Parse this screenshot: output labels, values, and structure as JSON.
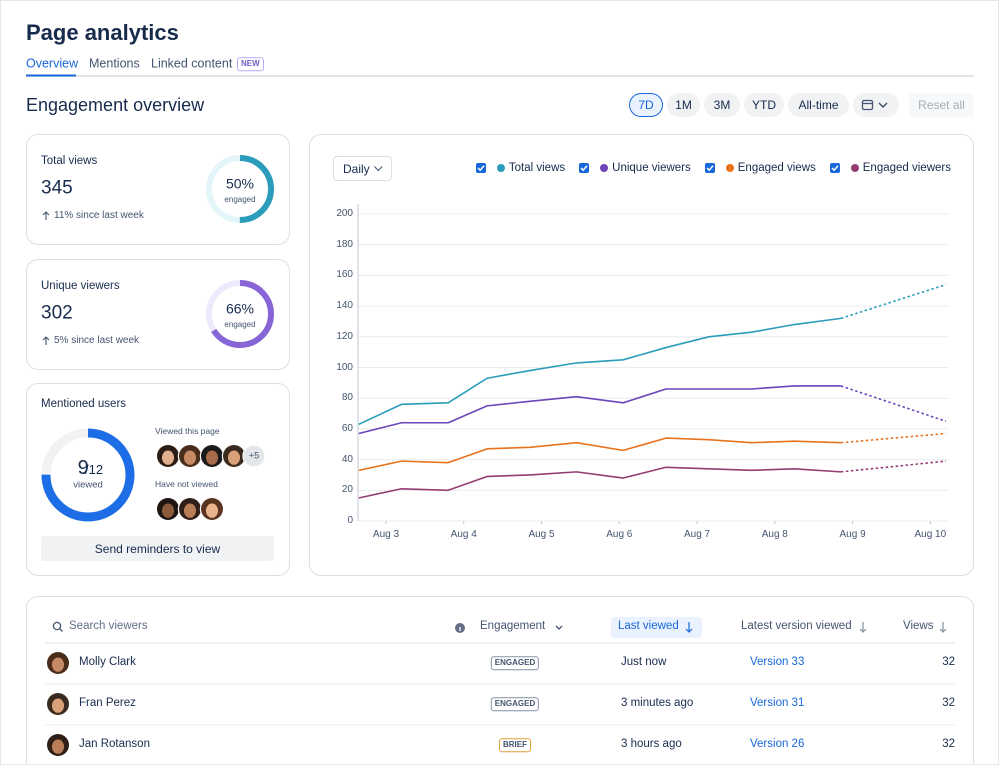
{
  "header": {
    "title": "Page analytics",
    "tabs": [
      "Overview",
      "Mentions",
      "Linked content"
    ],
    "badge": "NEW"
  },
  "section_title": "Engagement overview",
  "ranges": [
    "7D",
    "1M",
    "3M",
    "YTD",
    "All-time"
  ],
  "reset": "Reset all",
  "stats": [
    {
      "label": "Total views",
      "value": 345,
      "percent": 50,
      "percent_label": "50%",
      "caption": "engaged",
      "change": "11% since last week",
      "color": "#2b9cba",
      "track": "#e4f5fa"
    },
    {
      "label": "Unique viewers",
      "value": 302,
      "percent": 66,
      "percent_label": "66%",
      "caption": "engaged",
      "change": "5% since last week",
      "color": "#8765d6",
      "track": "#efeafb"
    }
  ],
  "mentions": {
    "title": "Mentioned users",
    "viewed": 9,
    "total": 12,
    "total_label": "/12",
    "caption": "viewed",
    "viewed_heading": "Viewed this page",
    "more": "+5",
    "not_viewed_heading": "Have not viewed",
    "button": "Send reminders to view",
    "color": "#1d6ee6",
    "track": "#f1f2f4"
  },
  "chart_data": {
    "type": "line",
    "interval": "Daily",
    "x": [
      2.65,
      3.2,
      3.8,
      4.3,
      4.85,
      5.45,
      6.05,
      6.6,
      7.15,
      7.7,
      8.25,
      8.85,
      10.2
    ],
    "xlim": [
      2.64,
      10.24
    ],
    "xticks": [
      {
        "value": 3,
        "label": "Aug 3"
      },
      {
        "value": 4,
        "label": "Aug 4"
      },
      {
        "value": 5,
        "label": "Aug 5"
      },
      {
        "value": 6,
        "label": "Aug 6"
      },
      {
        "value": 7,
        "label": "Aug 7"
      },
      {
        "value": 8,
        "label": "Aug 8"
      },
      {
        "value": 9,
        "label": "Aug 9"
      },
      {
        "value": 10,
        "label": "Aug 10"
      }
    ],
    "ylim": [
      0,
      200
    ],
    "yticks": [
      0,
      20,
      40,
      60,
      80,
      100,
      120,
      140,
      160,
      180,
      200
    ],
    "grid": true,
    "projection_start": 11,
    "series": [
      {
        "name": "Total views",
        "color": "#2b9cba",
        "values": [
          63,
          76,
          77,
          93,
          98,
          103,
          105,
          113,
          120,
          123,
          128,
          132,
          154
        ]
      },
      {
        "name": "Unique viewers",
        "color": "#6a46b8",
        "values": [
          57,
          64,
          64,
          75,
          78,
          81,
          77,
          86,
          86,
          86,
          88,
          88,
          65
        ]
      },
      {
        "name": "Engaged views",
        "color": "#e8731c",
        "values": [
          33,
          39,
          38,
          47,
          48,
          51,
          46,
          54,
          53,
          51,
          52,
          51,
          57
        ]
      },
      {
        "name": "Engaged viewers",
        "color": "#943d73",
        "values": [
          15,
          21,
          20,
          29,
          30,
          32,
          28,
          35,
          34,
          33,
          34,
          32,
          39
        ]
      }
    ]
  },
  "table": {
    "search": "Search viewers",
    "columns": [
      "Engagement",
      "Last viewed",
      "Latest version viewed",
      "Views"
    ],
    "rows": [
      {
        "name": "Molly Clark",
        "engagement": "ENGAGED",
        "engagement_color": "#8590a2",
        "last_viewed": "Just now",
        "version": "Version 33",
        "views": 32
      },
      {
        "name": "Fran Perez",
        "engagement": "ENGAGED",
        "engagement_color": "#8590a2",
        "last_viewed": "3 minutes ago",
        "version": "Version 31",
        "views": 32
      },
      {
        "name": "Jan Rotanson",
        "engagement": "BRIEF",
        "engagement_color": "#e2a03f",
        "last_viewed": "3 hours ago",
        "version": "Version 26",
        "views": 32
      }
    ]
  }
}
